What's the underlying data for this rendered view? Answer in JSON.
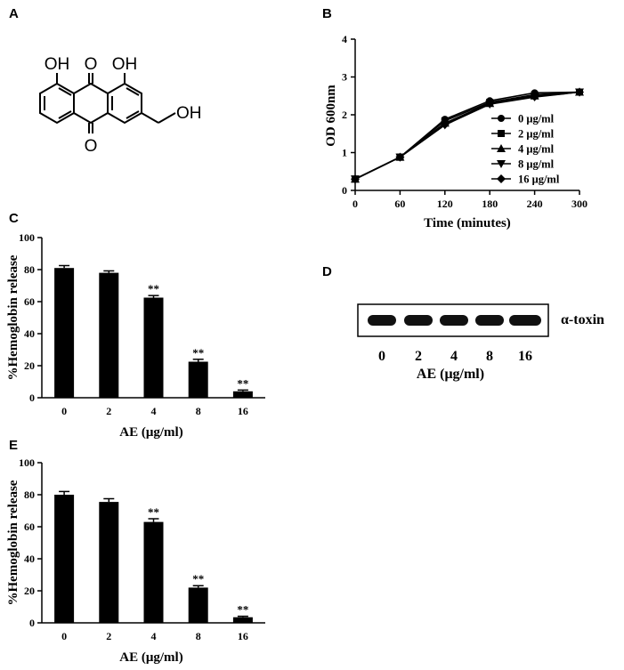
{
  "panels": {
    "A": "A",
    "B": "B",
    "C": "C",
    "D": "D",
    "E": "E"
  },
  "structure": {
    "labels": [
      "OH",
      "O",
      "OH",
      "O",
      "OH"
    ]
  },
  "chart_data": [
    {
      "id": "B",
      "type": "line",
      "xlabel": "Time (minutes)",
      "ylabel": "OD 600nm",
      "x": [
        0,
        60,
        120,
        180,
        240,
        300
      ],
      "xticks": [
        "0",
        "60",
        "120",
        "180",
        "240",
        "300"
      ],
      "yticks": [
        "0",
        "1",
        "2",
        "3",
        "4"
      ],
      "xlim": [
        0,
        300
      ],
      "ylim": [
        0,
        4
      ],
      "legend_position": "right",
      "series": [
        {
          "name": "0 μg/ml",
          "marker": "circle",
          "values": [
            0.3,
            0.88,
            1.88,
            2.37,
            2.58,
            2.6
          ]
        },
        {
          "name": "2 μg/ml",
          "marker": "square",
          "values": [
            0.3,
            0.88,
            1.84,
            2.33,
            2.53,
            2.6
          ]
        },
        {
          "name": "4 μg/ml",
          "marker": "triangle-up",
          "values": [
            0.3,
            0.88,
            1.78,
            2.3,
            2.5,
            2.6
          ]
        },
        {
          "name": "8 μg/ml",
          "marker": "triangle-down",
          "values": [
            0.3,
            0.88,
            1.73,
            2.28,
            2.47,
            2.6
          ]
        },
        {
          "name": "16 μg/ml",
          "marker": "diamond",
          "values": [
            0.3,
            0.88,
            1.74,
            2.32,
            2.48,
            2.6
          ]
        }
      ]
    },
    {
      "id": "C",
      "type": "bar",
      "xlabel": "AE (μg/ml)",
      "ylabel": "%Hemoglobin release",
      "categories": [
        "0",
        "2",
        "4",
        "8",
        "16"
      ],
      "values": [
        81,
        78,
        62.5,
        22.5,
        4
      ],
      "errors": [
        1.5,
        1.2,
        1.3,
        1.5,
        0.8
      ],
      "significance": [
        "",
        "",
        "**",
        "**",
        "**"
      ],
      "yticks": [
        "0",
        "20",
        "40",
        "60",
        "80",
        "100"
      ],
      "ylim": [
        0,
        100
      ]
    },
    {
      "id": "E",
      "type": "bar",
      "xlabel": "AE (μg/ml)",
      "ylabel": "%Hemoglobin release",
      "categories": [
        "0",
        "2",
        "4",
        "8",
        "16"
      ],
      "values": [
        80,
        75.5,
        63,
        22,
        3.5
      ],
      "errors": [
        2,
        2,
        2,
        1.2,
        0.6
      ],
      "significance": [
        "",
        "",
        "**",
        "**",
        "**"
      ],
      "yticks": [
        "0",
        "20",
        "40",
        "60",
        "80",
        "100"
      ],
      "ylim": [
        0,
        100
      ]
    }
  ],
  "blot": {
    "band_label": "α-toxin",
    "lanes": [
      "0",
      "2",
      "4",
      "8",
      "16"
    ],
    "xlabel": "AE (μg/ml)"
  }
}
